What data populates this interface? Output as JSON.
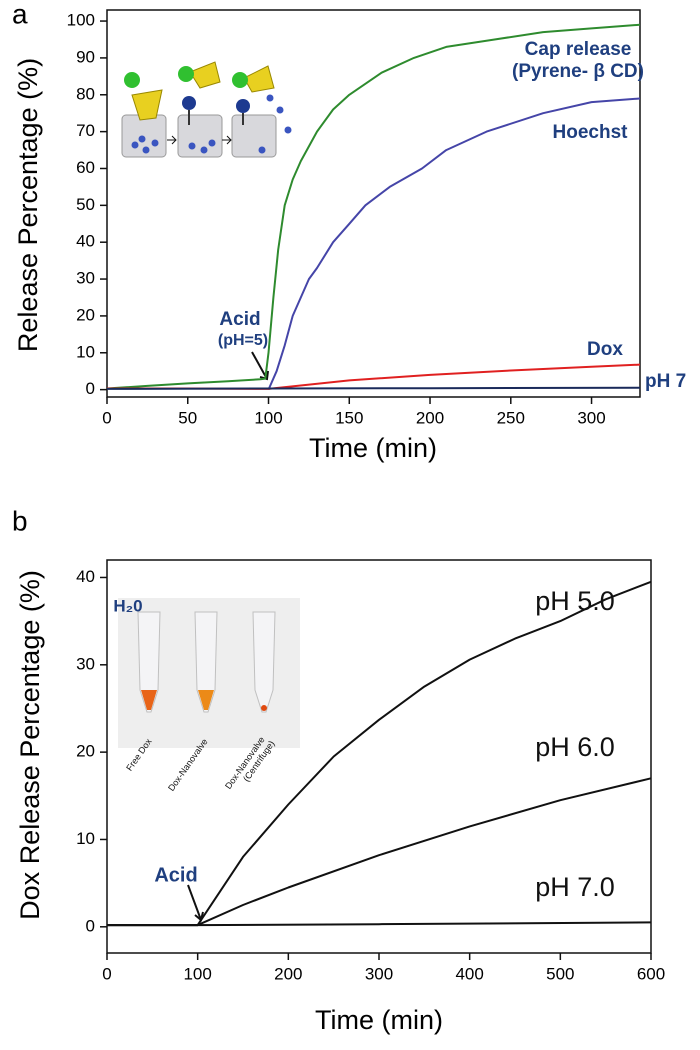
{
  "chart_data": [
    {
      "type": "line",
      "panel_label": "a",
      "xlabel": "Time (min)",
      "ylabel": "Release Percentage (%)",
      "xlim": [
        0,
        330
      ],
      "ylim": [
        -2,
        103
      ],
      "xticks": [
        0,
        50,
        100,
        150,
        200,
        250,
        300
      ],
      "yticks": [
        0,
        10,
        20,
        30,
        40,
        50,
        60,
        70,
        80,
        90,
        100
      ],
      "series": [
        {
          "name": "Cap release",
          "color": "#2e8b2e",
          "x": [
            0,
            25,
            50,
            75,
            95,
            98,
            100,
            103,
            106,
            110,
            115,
            120,
            130,
            140,
            150,
            170,
            190,
            210,
            240,
            270,
            300,
            330
          ],
          "values": [
            0.3,
            1,
            1.7,
            2.3,
            2.8,
            3,
            10,
            25,
            38,
            50,
            57,
            62,
            70,
            76,
            80,
            86,
            90,
            93,
            95,
            97,
            98,
            99
          ]
        },
        {
          "name": "Hoechst",
          "color": "#4545a8",
          "x": [
            100,
            105,
            110,
            115,
            120,
            125,
            130,
            140,
            150,
            160,
            175,
            195,
            210,
            235,
            270,
            300,
            330
          ],
          "values": [
            0,
            5,
            12,
            20,
            25,
            30,
            33,
            40,
            45,
            50,
            55,
            60,
            65,
            70,
            75,
            78,
            79
          ]
        },
        {
          "name": "Dox",
          "color": "#e02020",
          "x": [
            0,
            50,
            100,
            150,
            200,
            250,
            300,
            330
          ],
          "values": [
            0.3,
            0.3,
            0.2,
            2.5,
            4,
            5.2,
            6.2,
            6.8
          ]
        },
        {
          "name": "pH 7",
          "color": "#1a2a5a",
          "x": [
            0,
            100,
            200,
            330
          ],
          "values": [
            0.2,
            0.3,
            0.4,
            0.5
          ]
        }
      ],
      "annotations": [
        "(Pyrene- β CD)",
        "Acid",
        "(pH=5)"
      ]
    },
    {
      "type": "line",
      "panel_label": "b",
      "xlabel": "Time (min)",
      "ylabel": "Dox Release Percentage (%)",
      "xlim": [
        0,
        600
      ],
      "ylim": [
        -3,
        42
      ],
      "xticks": [
        0,
        100,
        200,
        300,
        400,
        500,
        600
      ],
      "yticks": [
        0,
        10,
        20,
        30,
        40
      ],
      "series": [
        {
          "name": "pH 5.0",
          "color": "#111111",
          "x": [
            0,
            100,
            150,
            200,
            250,
            300,
            350,
            400,
            450,
            500,
            550,
            600
          ],
          "values": [
            0.2,
            0.2,
            8,
            14,
            19.5,
            23.7,
            27.5,
            30.6,
            33,
            35,
            37.5,
            39.5
          ]
        },
        {
          "name": "pH 6.0",
          "color": "#111111",
          "x": [
            0,
            100,
            150,
            200,
            300,
            400,
            500,
            600
          ],
          "values": [
            0.2,
            0.2,
            2.5,
            4.5,
            8.2,
            11.5,
            14.5,
            17
          ]
        },
        {
          "name": "pH 7.0",
          "color": "#111111",
          "x": [
            0,
            100,
            300,
            600
          ],
          "values": [
            0.2,
            0.2,
            0.3,
            0.5
          ]
        }
      ],
      "annotations": [
        "Acid",
        "H₂0",
        "Free Dox",
        "Dox-Nanovalve",
        "Dox-Nanovalve",
        "(Centrifuge)"
      ]
    }
  ]
}
